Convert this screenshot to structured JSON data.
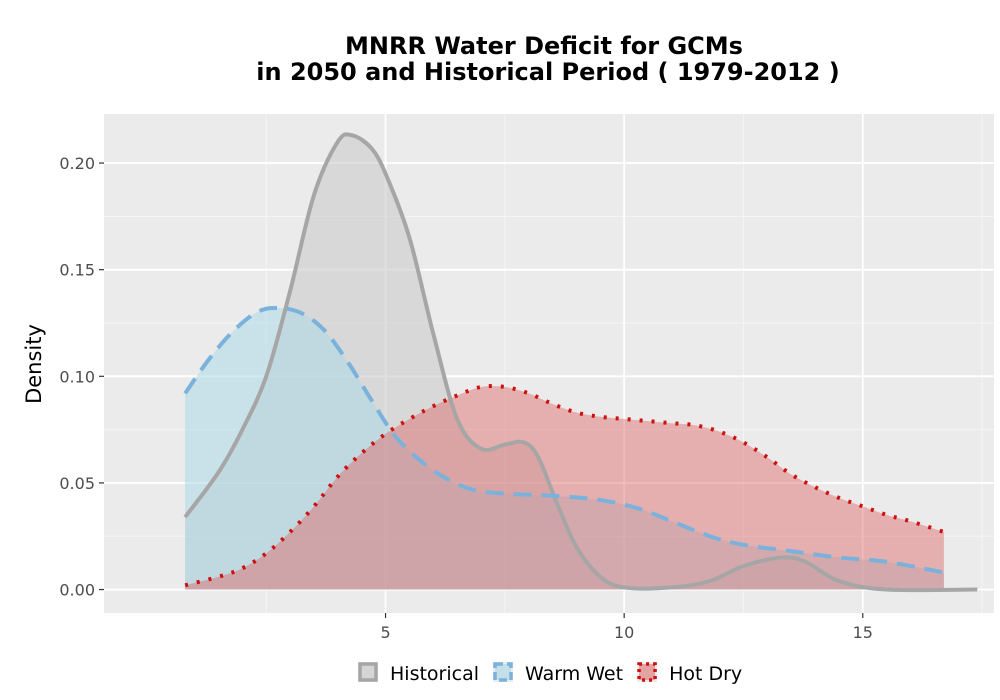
{
  "chart_data": {
    "type": "area",
    "title_line1": "MNRR  Water Deficit for GCMs",
    "title_line2": "in 2050 and Historical Period ( 1979-2012 )",
    "xlabel": "",
    "ylabel": "Density",
    "xlim": [
      -0.9,
      17.75
    ],
    "ylim": [
      -0.011,
      0.223
    ],
    "x_ticks": [
      5,
      10,
      15
    ],
    "x_tick_labels": [
      "5",
      "10",
      "15"
    ],
    "y_ticks": [
      0.0,
      0.05,
      0.1,
      0.15,
      0.2
    ],
    "y_tick_labels": [
      "0.00",
      "0.05",
      "0.10",
      "0.15",
      "0.20"
    ],
    "grid": true,
    "legend_position": "bottom",
    "series": [
      {
        "name": "Historical",
        "line_style": "solid",
        "line_color": "#a6a6a6",
        "fill_color": "#cccccc",
        "fill_opacity": 0.6,
        "points": [
          [
            0.8,
            0.034
          ],
          [
            1.5,
            0.055
          ],
          [
            2.0,
            0.075
          ],
          [
            2.5,
            0.1
          ],
          [
            3.0,
            0.14
          ],
          [
            3.5,
            0.185
          ],
          [
            4.0,
            0.21
          ],
          [
            4.3,
            0.213
          ],
          [
            4.7,
            0.207
          ],
          [
            5.0,
            0.195
          ],
          [
            5.5,
            0.165
          ],
          [
            6.0,
            0.12
          ],
          [
            6.5,
            0.08
          ],
          [
            7.0,
            0.066
          ],
          [
            7.5,
            0.068
          ],
          [
            7.9,
            0.069
          ],
          [
            8.2,
            0.062
          ],
          [
            8.6,
            0.04
          ],
          [
            9.0,
            0.02
          ],
          [
            9.5,
            0.006
          ],
          [
            10.0,
            0.001
          ],
          [
            11.0,
            0.001
          ],
          [
            11.8,
            0.004
          ],
          [
            12.5,
            0.011
          ],
          [
            13.3,
            0.015
          ],
          [
            13.8,
            0.013
          ],
          [
            14.5,
            0.004
          ],
          [
            15.5,
            0.0
          ],
          [
            17.4,
            0.0
          ]
        ]
      },
      {
        "name": "Warm Wet",
        "line_style": "dashed",
        "line_color": "#7ab2dc",
        "fill_color": "#add8e6",
        "fill_opacity": 0.55,
        "points": [
          [
            0.8,
            0.092
          ],
          [
            1.3,
            0.108
          ],
          [
            1.8,
            0.121
          ],
          [
            2.3,
            0.13
          ],
          [
            2.7,
            0.132
          ],
          [
            3.2,
            0.13
          ],
          [
            3.7,
            0.122
          ],
          [
            4.2,
            0.107
          ],
          [
            4.7,
            0.089
          ],
          [
            5.2,
            0.072
          ],
          [
            5.7,
            0.061
          ],
          [
            6.2,
            0.053
          ],
          [
            6.8,
            0.047
          ],
          [
            7.5,
            0.045
          ],
          [
            8.5,
            0.044
          ],
          [
            9.5,
            0.042
          ],
          [
            10.3,
            0.038
          ],
          [
            11.0,
            0.032
          ],
          [
            11.8,
            0.025
          ],
          [
            12.5,
            0.021
          ],
          [
            13.5,
            0.018
          ],
          [
            14.5,
            0.015
          ],
          [
            15.5,
            0.013
          ],
          [
            16.7,
            0.008
          ]
        ]
      },
      {
        "name": "Hot Dry",
        "line_style": "dotted",
        "line_color": "#cc1111",
        "fill_color": "#e06666",
        "fill_opacity": 0.45,
        "points": [
          [
            0.8,
            0.002
          ],
          [
            1.5,
            0.006
          ],
          [
            2.0,
            0.01
          ],
          [
            2.5,
            0.017
          ],
          [
            3.0,
            0.027
          ],
          [
            3.5,
            0.039
          ],
          [
            4.0,
            0.053
          ],
          [
            4.5,
            0.064
          ],
          [
            5.0,
            0.073
          ],
          [
            5.5,
            0.08
          ],
          [
            6.0,
            0.086
          ],
          [
            6.5,
            0.091
          ],
          [
            7.0,
            0.095
          ],
          [
            7.5,
            0.095
          ],
          [
            8.0,
            0.092
          ],
          [
            8.5,
            0.087
          ],
          [
            9.0,
            0.083
          ],
          [
            9.5,
            0.081
          ],
          [
            10.0,
            0.08
          ],
          [
            10.5,
            0.079
          ],
          [
            11.0,
            0.078
          ],
          [
            11.5,
            0.077
          ],
          [
            12.0,
            0.074
          ],
          [
            12.5,
            0.069
          ],
          [
            13.0,
            0.062
          ],
          [
            13.5,
            0.054
          ],
          [
            14.0,
            0.048
          ],
          [
            14.5,
            0.043
          ],
          [
            15.0,
            0.039
          ],
          [
            15.5,
            0.035
          ],
          [
            16.0,
            0.032
          ],
          [
            16.7,
            0.027
          ]
        ]
      }
    ]
  }
}
